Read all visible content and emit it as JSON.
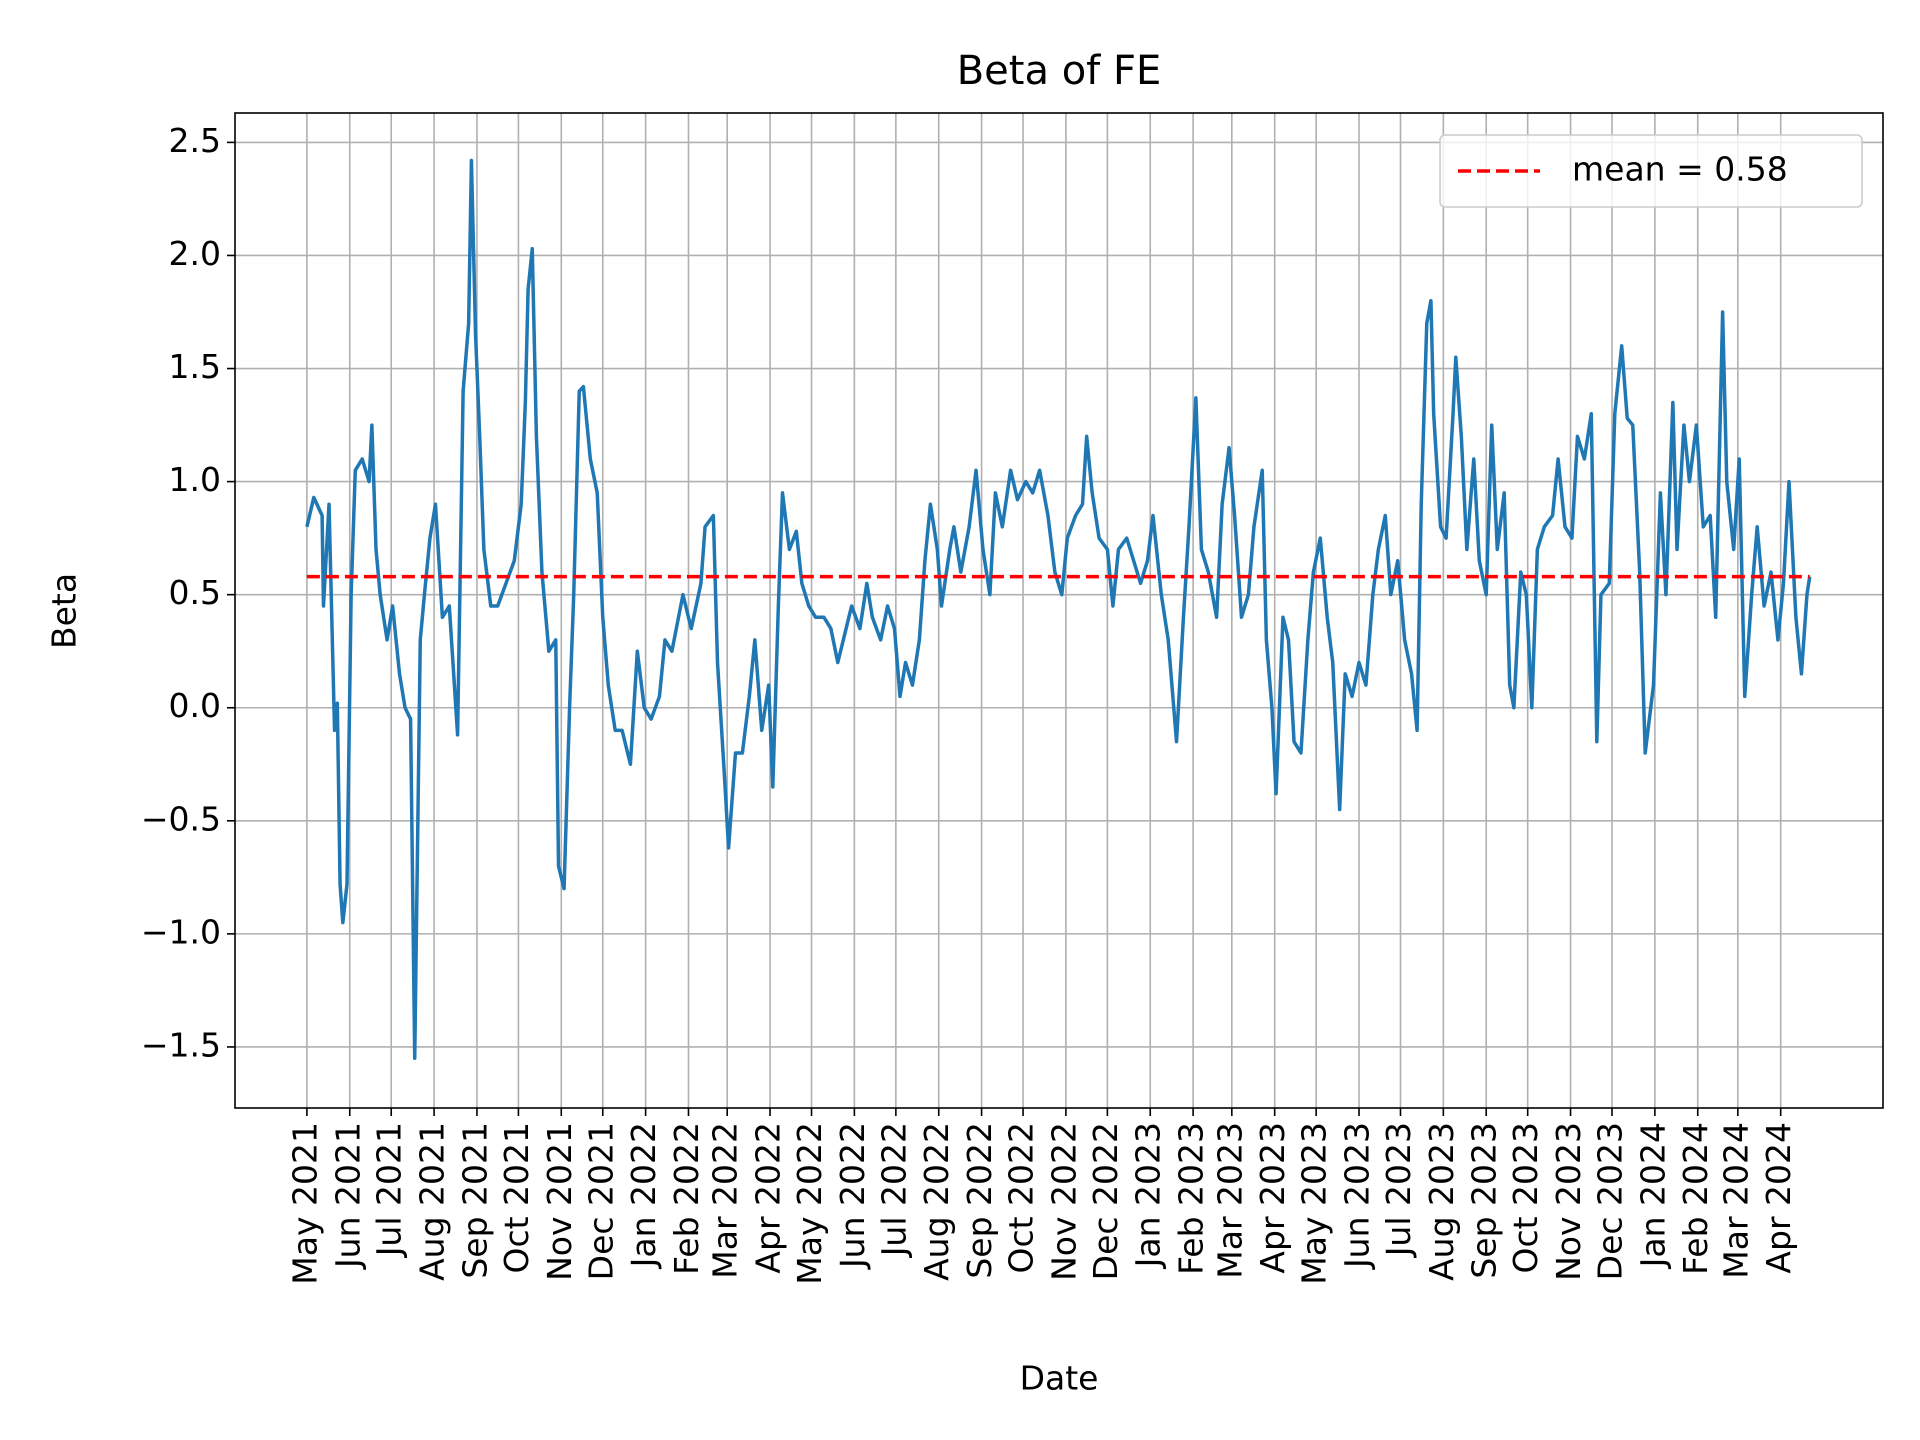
{
  "chart_data": {
    "type": "line",
    "title": "Beta of FE",
    "xlabel": "Date",
    "ylabel": "Beta",
    "xlim": [
      "2021-03-10",
      "2024-06-14"
    ],
    "ylim": [
      -1.77,
      2.63
    ],
    "grid": true,
    "legend": "upper right",
    "yticks": [
      {
        "value": -1.5,
        "label": "−1.5"
      },
      {
        "value": -1,
        "label": "−1.0"
      },
      {
        "value": -0.5,
        "label": "−0.5"
      },
      {
        "value": 0,
        "label": "0.0"
      },
      0.5,
      {
        "value": 1,
        "label": "1.0"
      },
      1.5,
      {
        "value": 2,
        "label": "2.0"
      },
      2.5
    ],
    "xticks": [
      {
        "value": "2021-05",
        "label": "May 2021"
      },
      {
        "value": "2021-06",
        "label": "Jun 2021"
      },
      {
        "value": "2021-07",
        "label": "Jul 2021"
      },
      {
        "value": "2021-08",
        "label": "Aug 2021"
      },
      {
        "value": "2021-09",
        "label": "Sep 2021"
      },
      {
        "value": "2021-10",
        "label": "Oct 2021"
      },
      {
        "value": "2021-11",
        "label": "Nov 2021"
      },
      {
        "value": "2021-12",
        "label": "Dec 2021"
      },
      {
        "value": "2022-01",
        "label": "Jan 2022"
      },
      {
        "value": "2022-02",
        "label": "Feb 2022"
      },
      {
        "value": "2022-03",
        "label": "Mar 2022"
      },
      {
        "value": "2022-04",
        "label": "Apr 2022"
      },
      {
        "value": "2022-05",
        "label": "May 2022"
      },
      {
        "value": "2022-06",
        "label": "Jun 2022"
      },
      {
        "value": "2022-07",
        "label": "Jul 2022"
      },
      {
        "value": "2022-08",
        "label": "Aug 2022"
      },
      {
        "value": "2022-09",
        "label": "Sep 2022"
      },
      {
        "value": "2022-10",
        "label": "Oct 2022"
      },
      {
        "value": "2022-11",
        "label": "Nov 2022"
      },
      {
        "value": "2022-12",
        "label": "Dec 2022"
      },
      {
        "value": "2023-01",
        "label": "Jan 2023"
      },
      {
        "value": "2023-02",
        "label": "Feb 2023"
      },
      {
        "value": "2023-03",
        "label": "Mar 2023"
      },
      {
        "value": "2023-04",
        "label": "Apr 2023"
      },
      {
        "value": "2023-05",
        "label": "May 2023"
      },
      {
        "value": "2023-06",
        "label": "Jun 2023"
      },
      {
        "value": "2023-07",
        "label": "Jul 2023"
      },
      {
        "value": "2023-08",
        "label": "Aug 2023"
      },
      {
        "value": "2023-09",
        "label": "Sep 2023"
      },
      {
        "value": "2023-10",
        "label": "Oct 2023"
      },
      {
        "value": "2023-11",
        "label": "Nov 2023"
      },
      {
        "value": "2023-12",
        "label": "Dec 2023"
      },
      {
        "value": "2024-01",
        "label": "Jan 2024"
      },
      {
        "value": "2024-02",
        "label": "Feb 2024"
      },
      {
        "value": "2024-03",
        "label": "Mar 2024"
      },
      {
        "value": "2024-04",
        "label": "Apr 2024"
      }
    ],
    "x": [
      "2021-05-01",
      "2021-05-06",
      "2021-05-12",
      "2021-05-13",
      "2021-05-17",
      "2021-05-21",
      "2021-05-23",
      "2021-05-25",
      "2021-05-27",
      "2021-05-30",
      "2021-06-02",
      "2021-06-05",
      "2021-06-10",
      "2021-06-15",
      "2021-06-17",
      "2021-06-20",
      "2021-06-23",
      "2021-06-28",
      "2021-07-02",
      "2021-07-07",
      "2021-07-11",
      "2021-07-15",
      "2021-07-18",
      "2021-07-22",
      "2021-07-25",
      "2021-07-29",
      "2021-08-02",
      "2021-08-07",
      "2021-08-12",
      "2021-08-18",
      "2021-08-22",
      "2021-08-26",
      "2021-08-28",
      "2021-08-31",
      "2021-09-03",
      "2021-09-06",
      "2021-09-11",
      "2021-09-16",
      "2021-09-22",
      "2021-09-28",
      "2021-10-03",
      "2021-10-06",
      "2021-10-08",
      "2021-10-11",
      "2021-10-14",
      "2021-10-18",
      "2021-10-23",
      "2021-10-28",
      "2021-10-30",
      "2021-11-03",
      "2021-11-07",
      "2021-11-10",
      "2021-11-14",
      "2021-11-17",
      "2021-11-22",
      "2021-11-27",
      "2021-12-01",
      "2021-12-05",
      "2021-12-10",
      "2021-12-15",
      "2021-12-21",
      "2021-12-26",
      "2021-12-31",
      "2022-01-05",
      "2022-01-11",
      "2022-01-15",
      "2022-01-20",
      "2022-01-28",
      "2022-02-03",
      "2022-02-10",
      "2022-02-13",
      "2022-02-19",
      "2022-02-22",
      "2022-02-27",
      "2022-03-02",
      "2022-03-07",
      "2022-03-12",
      "2022-03-17",
      "2022-03-21",
      "2022-03-26",
      "2022-03-31",
      "2022-04-03",
      "2022-04-07",
      "2022-04-10",
      "2022-04-15",
      "2022-04-20",
      "2022-04-24",
      "2022-04-29",
      "2022-05-04",
      "2022-05-10",
      "2022-05-15",
      "2022-05-20",
      "2022-05-26",
      "2022-05-30",
      "2022-06-05",
      "2022-06-10",
      "2022-06-14",
      "2022-06-20",
      "2022-06-25",
      "2022-06-30",
      "2022-07-04",
      "2022-07-08",
      "2022-07-13",
      "2022-07-18",
      "2022-07-22",
      "2022-07-26",
      "2022-07-31",
      "2022-08-03",
      "2022-08-09",
      "2022-08-12",
      "2022-08-17",
      "2022-08-23",
      "2022-08-28",
      "2022-09-02",
      "2022-09-07",
      "2022-09-11",
      "2022-09-16",
      "2022-09-22",
      "2022-09-27",
      "2022-10-03",
      "2022-10-08",
      "2022-10-13",
      "2022-10-19",
      "2022-10-24",
      "2022-10-29",
      "2022-11-02",
      "2022-11-08",
      "2022-11-13",
      "2022-11-16",
      "2022-11-20",
      "2022-11-25",
      "2022-12-01",
      "2022-12-05",
      "2022-12-09",
      "2022-12-15",
      "2022-12-20",
      "2022-12-25",
      "2022-12-30",
      "2023-01-03",
      "2023-01-09",
      "2023-01-14",
      "2023-01-20",
      "2023-01-25",
      "2023-01-29",
      "2023-02-03",
      "2023-02-07",
      "2023-02-12",
      "2023-02-18",
      "2023-02-22",
      "2023-02-27",
      "2023-03-03",
      "2023-03-08",
      "2023-03-13",
      "2023-03-17",
      "2023-03-23",
      "2023-03-26",
      "2023-03-30",
      "2023-04-02",
      "2023-04-07",
      "2023-04-11",
      "2023-04-15",
      "2023-04-20",
      "2023-04-25",
      "2023-04-29",
      "2023-05-04",
      "2023-05-09",
      "2023-05-13",
      "2023-05-18",
      "2023-05-22",
      "2023-05-27",
      "2023-06-01",
      "2023-06-06",
      "2023-06-11",
      "2023-06-15",
      "2023-06-20",
      "2023-06-24",
      "2023-06-29",
      "2023-07-04",
      "2023-07-09",
      "2023-07-13",
      "2023-07-16",
      "2023-07-20",
      "2023-07-23",
      "2023-07-25",
      "2023-07-30",
      "2023-08-03",
      "2023-08-08",
      "2023-08-10",
      "2023-08-14",
      "2023-08-18",
      "2023-08-23",
      "2023-08-27",
      "2023-09-01",
      "2023-09-05",
      "2023-09-09",
      "2023-09-14",
      "2023-09-18",
      "2023-09-21",
      "2023-09-26",
      "2023-09-30",
      "2023-10-04",
      "2023-10-08",
      "2023-10-13",
      "2023-10-19",
      "2023-10-23",
      "2023-10-28",
      "2023-11-02",
      "2023-11-06",
      "2023-11-11",
      "2023-11-16",
      "2023-11-20",
      "2023-11-23",
      "2023-11-29",
      "2023-12-03",
      "2023-12-08",
      "2023-12-12",
      "2023-12-16",
      "2023-12-21",
      "2023-12-25",
      "2023-12-31",
      "2024-01-05",
      "2024-01-09",
      "2024-01-14",
      "2024-01-17",
      "2024-01-22",
      "2024-01-26",
      "2024-01-31",
      "2024-02-05",
      "2024-02-10",
      "2024-02-14",
      "2024-02-19",
      "2024-02-22",
      "2024-02-27",
      "2024-03-02",
      "2024-03-06",
      "2024-03-11",
      "2024-03-15",
      "2024-03-20",
      "2024-03-25",
      "2024-03-30",
      "2024-04-03",
      "2024-04-07",
      "2024-04-12",
      "2024-04-16",
      "2024-04-20",
      "2024-04-22"
    ],
    "series": [
      {
        "color": "#1f77b4",
        "values": [
          0.8,
          0.93,
          0.85,
          0.45,
          0.9,
          -0.1,
          0.02,
          -0.78,
          -0.95,
          -0.78,
          0.5,
          1.05,
          1.1,
          1.0,
          1.25,
          0.7,
          0.5,
          0.3,
          0.45,
          0.15,
          0.0,
          -0.05,
          -1.55,
          0.3,
          0.5,
          0.75,
          0.9,
          0.4,
          0.45,
          -0.12,
          1.4,
          1.7,
          2.42,
          1.65,
          1.2,
          0.7,
          0.45,
          0.45,
          0.55,
          0.65,
          0.9,
          1.35,
          1.85,
          2.03,
          1.2,
          0.6,
          0.25,
          0.3,
          -0.7,
          -0.8,
          0.0,
          0.5,
          1.4,
          1.42,
          1.1,
          0.95,
          0.4,
          0.1,
          -0.1,
          -0.1,
          -0.25,
          0.25,
          0.0,
          -0.05,
          0.05,
          0.3,
          0.25,
          0.5,
          0.35,
          0.55,
          0.8,
          0.85,
          0.2,
          -0.3,
          -0.62,
          -0.2,
          -0.2,
          0.05,
          0.3,
          -0.1,
          0.1,
          -0.35,
          0.45,
          0.95,
          0.7,
          0.78,
          0.55,
          0.45,
          0.4,
          0.4,
          0.35,
          0.2,
          0.35,
          0.45,
          0.35,
          0.55,
          0.4,
          0.3,
          0.45,
          0.35,
          0.05,
          0.2,
          0.1,
          0.3,
          0.65,
          0.9,
          0.7,
          0.45,
          0.7,
          0.8,
          0.6,
          0.8,
          1.05,
          0.7,
          0.5,
          0.95,
          0.8,
          1.05,
          0.92,
          1.0,
          0.95,
          1.05,
          0.85,
          0.6,
          0.5,
          0.75,
          0.85,
          0.9,
          1.2,
          0.95,
          0.75,
          0.7,
          0.45,
          0.7,
          0.75,
          0.65,
          0.55,
          0.65,
          0.85,
          0.5,
          0.3,
          -0.15,
          0.4,
          0.8,
          1.37,
          0.7,
          0.6,
          0.4,
          0.9,
          1.15,
          0.85,
          0.4,
          0.5,
          0.8,
          1.05,
          0.3,
          0.0,
          -0.38,
          0.4,
          0.3,
          -0.15,
          -0.2,
          0.3,
          0.6,
          0.75,
          0.4,
          0.2,
          -0.45,
          0.15,
          0.05,
          0.2,
          0.1,
          0.5,
          0.7,
          0.85,
          0.5,
          0.65,
          0.3,
          0.15,
          -0.1,
          0.9,
          1.7,
          1.8,
          1.3,
          0.8,
          0.75,
          1.3,
          1.55,
          1.2,
          0.7,
          1.1,
          0.65,
          0.5,
          1.25,
          0.7,
          0.95,
          0.1,
          0.0,
          0.6,
          0.5,
          0.0,
          0.7,
          0.8,
          0.85,
          1.1,
          0.8,
          0.75,
          1.2,
          1.1,
          1.3,
          -0.15,
          0.5,
          0.55,
          1.3,
          1.6,
          1.28,
          1.25,
          0.6,
          -0.2,
          0.1,
          0.95,
          0.5,
          1.35,
          0.7,
          1.25,
          1.0,
          1.25,
          0.8,
          0.85,
          0.4,
          1.75,
          1.0,
          0.7,
          1.1,
          0.05,
          0.5,
          0.8,
          0.45,
          0.6,
          0.3,
          0.55,
          1.0,
          0.4,
          0.15,
          0.5,
          0.58
        ]
      }
    ],
    "mean_line": {
      "name": "mean = 0.58",
      "value": 0.58,
      "color": "#ff0000"
    }
  }
}
